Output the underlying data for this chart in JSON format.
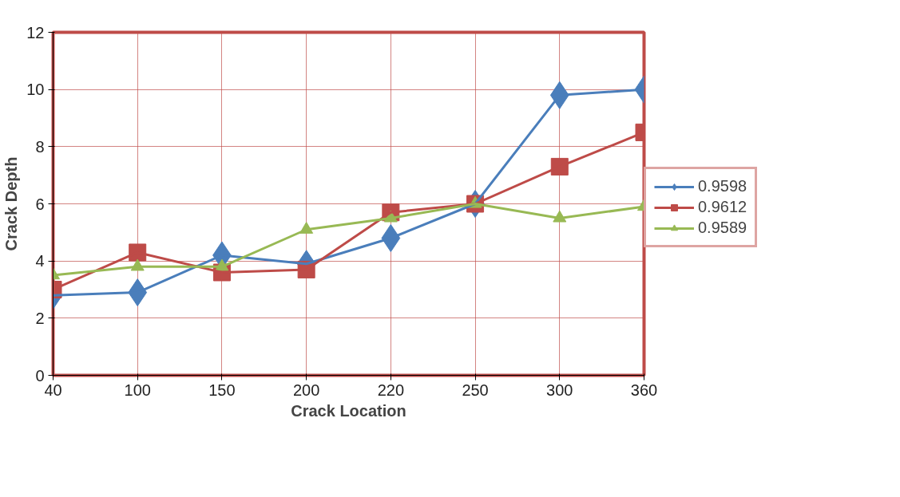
{
  "chart_data": {
    "type": "line",
    "xlabel": "Crack Location",
    "ylabel": "Crack Depth",
    "categories": [
      "40",
      "100",
      "150",
      "200",
      "220",
      "250",
      "300",
      "360"
    ],
    "series": [
      {
        "name": "0.9598",
        "color": "#4a7ebb",
        "marker": "diamond",
        "values": [
          2.8,
          2.9,
          4.2,
          3.9,
          4.8,
          6.0,
          9.8,
          10.0
        ]
      },
      {
        "name": "0.9612",
        "color": "#be4b48",
        "marker": "square",
        "values": [
          3.0,
          4.3,
          3.6,
          3.7,
          5.7,
          6.0,
          7.3,
          8.5
        ]
      },
      {
        "name": "0.9589",
        "color": "#98b954",
        "marker": "triangle",
        "values": [
          3.5,
          3.8,
          3.8,
          5.1,
          5.5,
          6.0,
          5.5,
          5.9
        ]
      }
    ],
    "ylim": [
      0,
      12
    ],
    "yticks": [
      0,
      2,
      4,
      6,
      8,
      10,
      12
    ],
    "grid": true,
    "legend": "right",
    "line_style": "solid"
  }
}
